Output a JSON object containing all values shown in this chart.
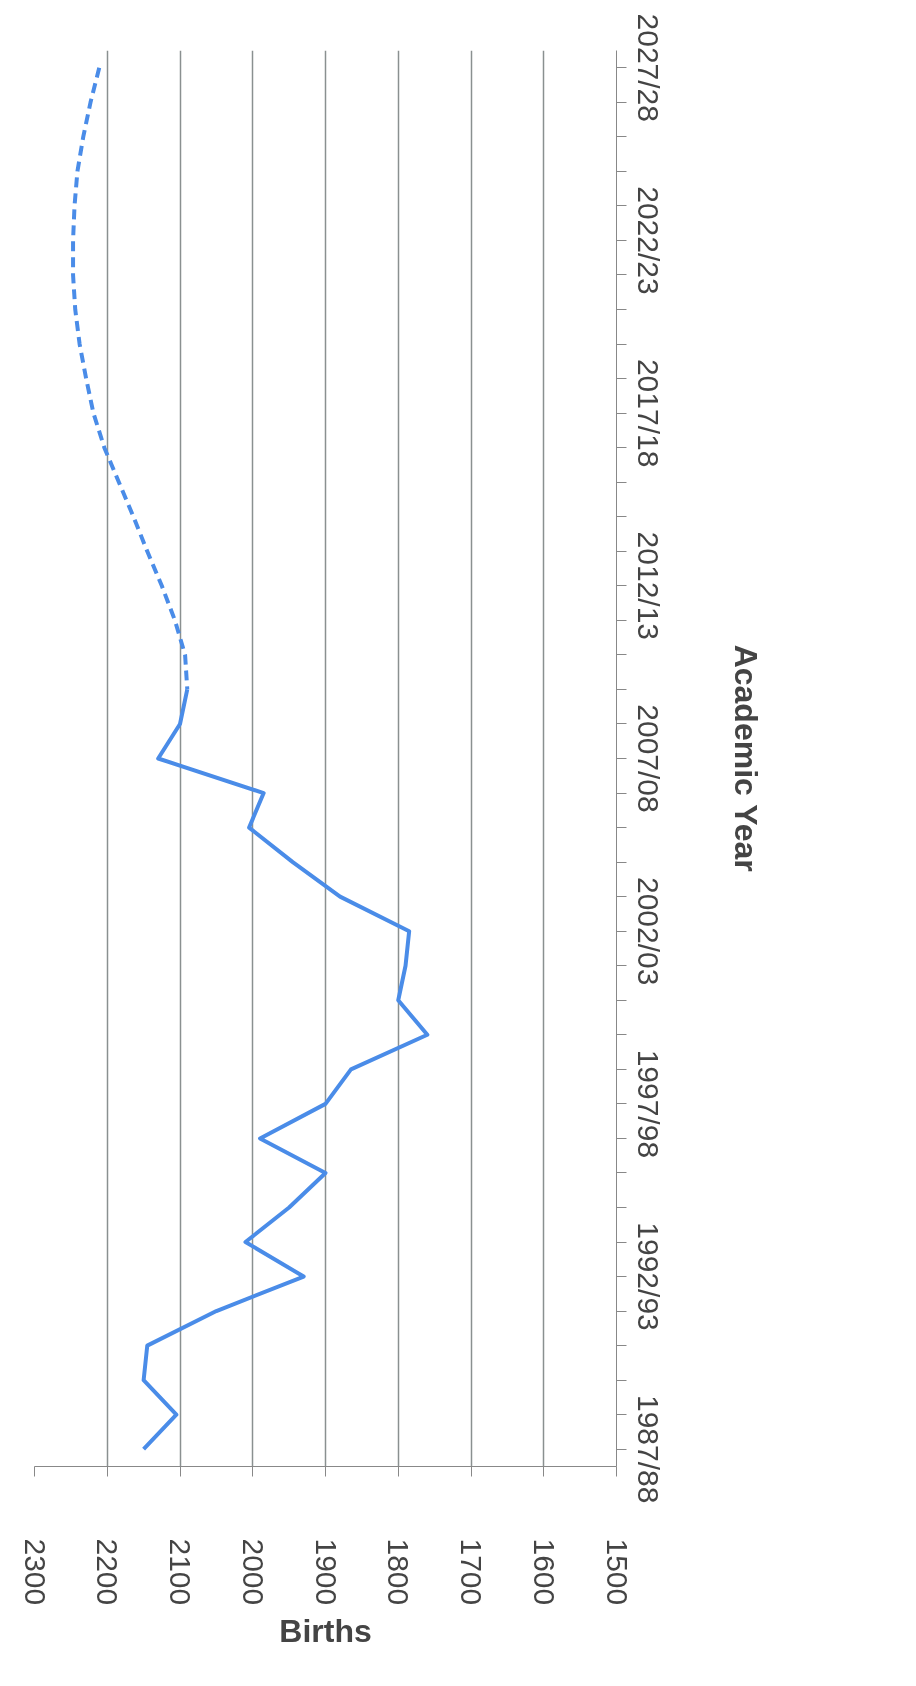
{
  "chart_data": {
    "type": "line",
    "orientation": "horizontal",
    "xlabel": "Births",
    "ylabel": "Academic Year",
    "categories": [
      "2027/28",
      null,
      null,
      null,
      null,
      "2022/23",
      null,
      null,
      null,
      null,
      "2017/18",
      null,
      null,
      null,
      null,
      "2012/13",
      null,
      null,
      null,
      null,
      "2007/08",
      null,
      null,
      null,
      null,
      "2002/03",
      null,
      null,
      null,
      null,
      "1997/98",
      null,
      null,
      null,
      null,
      "1992/93",
      null,
      null,
      null,
      null,
      "1987/88"
    ],
    "xlim": [
      2300,
      1500
    ],
    "xticks": [
      2300,
      2200,
      2100,
      2000,
      1900,
      1800,
      1700,
      1600,
      1500
    ],
    "grid": "x",
    "series": [
      {
        "color": "#4a8ce8",
        "line_style": "solid",
        "values": [
          null,
          null,
          null,
          null,
          null,
          null,
          null,
          null,
          null,
          null,
          null,
          null,
          null,
          null,
          null,
          null,
          null,
          null,
          2090,
          2100,
          2130,
          1985,
          2005,
          1945,
          1880,
          1785,
          1790,
          1800,
          1760,
          1865,
          1900,
          1990,
          1900,
          1950,
          2010,
          1930,
          2050,
          2145,
          2150,
          2105,
          2150
        ]
      },
      {
        "color": "#4a8ce8",
        "line_style": "dashed",
        "values": [
          2211,
          2223,
          2233,
          2241,
          2245,
          2247,
          2247,
          2244,
          2238,
          2229,
          2219,
          2204,
          2184,
          2164,
          2145,
          2125,
          2107,
          2093,
          2090,
          null,
          null,
          null,
          null,
          null,
          null,
          null,
          null,
          null,
          null,
          null,
          null,
          null,
          null,
          null,
          null,
          null,
          null,
          null,
          null,
          null,
          null
        ]
      }
    ]
  }
}
